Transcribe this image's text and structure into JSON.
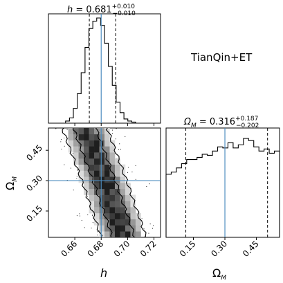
{
  "chart_data": {
    "type": "corner",
    "annotation": "TianQin+ET",
    "truth_color": "#4c8cbf",
    "parameters": [
      {
        "symbol": "h",
        "median": "0.681",
        "plus": "+0.010",
        "minus": "−0.010",
        "truth": 0.68,
        "quantiles": [
          0.671,
          0.691
        ],
        "range": [
          0.64,
          0.725
        ],
        "ticks": [
          0.66,
          0.68,
          0.7,
          0.72
        ],
        "tick_labels": [
          "0.66",
          "0.68",
          "0.70",
          "0.72"
        ],
        "axis_label": "h",
        "hist": [
          0.02,
          0.05,
          0.14,
          0.28,
          0.48,
          0.72,
          0.9,
          0.97,
          1.0,
          0.93,
          0.76,
          0.54,
          0.36,
          0.2,
          0.1,
          0.04,
          0.02,
          0.01,
          0.0,
          0.0
        ]
      },
      {
        "symbol": "Ω",
        "subscript": "M",
        "median": "0.316",
        "plus": "+0.187",
        "minus": "−0.202",
        "truth": 0.3,
        "quantiles": [
          0.114,
          0.503
        ],
        "range": [
          0.02,
          0.56
        ],
        "ticks": [
          0.15,
          0.3,
          0.45
        ],
        "tick_labels": [
          "0.15",
          "0.30",
          "0.45"
        ],
        "axis_label": "Ω",
        "axis_label_sub": "M",
        "hist": [
          0.6,
          0.62,
          0.66,
          0.7,
          0.74,
          0.74,
          0.76,
          0.79,
          0.78,
          0.82,
          0.86,
          0.85,
          0.9,
          0.85,
          0.88,
          0.94,
          0.92,
          0.86,
          0.82,
          0.84,
          0.8,
          0.82
        ]
      }
    ],
    "joint": {
      "x": "h",
      "y": "Ω_M",
      "ridge": [
        [
          0.668,
          0.55
        ],
        [
          0.672,
          0.48
        ],
        [
          0.676,
          0.41
        ],
        [
          0.68,
          0.34
        ],
        [
          0.684,
          0.27
        ],
        [
          0.688,
          0.19
        ],
        [
          0.692,
          0.12
        ],
        [
          0.695,
          0.06
        ],
        [
          0.697,
          0.02
        ]
      ],
      "width_h": 0.0085
    }
  }
}
